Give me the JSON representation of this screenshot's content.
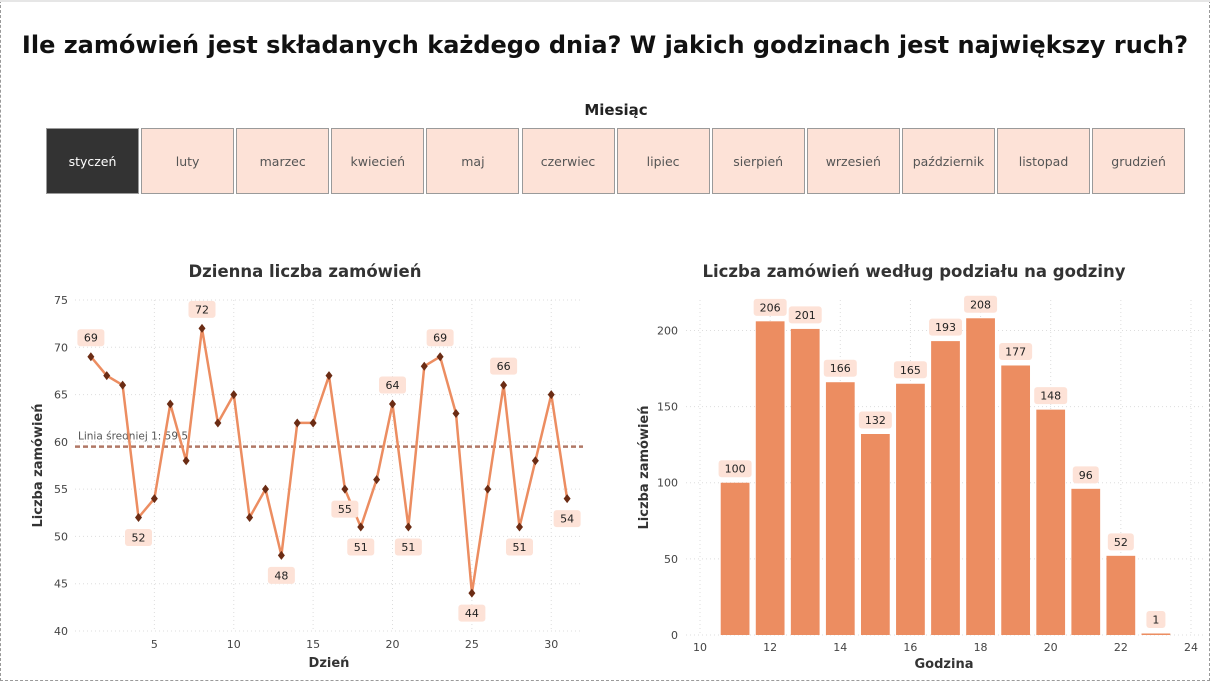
{
  "page": {
    "title": "Ile zamówień jest składanych każdego dnia? W jakich godzinach jest największy ruch?"
  },
  "slicer": {
    "label": "Miesiąc",
    "selected": "styczeń",
    "months": [
      "styczeń",
      "luty",
      "marzec",
      "kwiecień",
      "maj",
      "czerwiec",
      "lipiec",
      "sierpień",
      "wrzesień",
      "październik",
      "listopad",
      "grudzień"
    ]
  },
  "colors": {
    "accent": "#ec8d61",
    "marker": "#6b2c14",
    "label_bg": "#fde2d7",
    "avg_line": "#b07866",
    "slicer_active": "#333333",
    "slicer_bg": "#fde2d7"
  },
  "chart_data": [
    {
      "type": "line",
      "title": "Dzienna liczba zamówień",
      "xlabel": "Dzień",
      "ylabel": "Liczba zamówień",
      "x": [
        1,
        2,
        3,
        4,
        5,
        6,
        7,
        8,
        9,
        10,
        11,
        12,
        13,
        14,
        15,
        16,
        17,
        18,
        19,
        20,
        21,
        22,
        23,
        24,
        25,
        26,
        27,
        28,
        29,
        30,
        31
      ],
      "values": [
        69,
        67,
        66,
        52,
        54,
        64,
        58,
        72,
        62,
        65,
        52,
        55,
        48,
        62,
        62,
        67,
        55,
        51,
        56,
        64,
        51,
        68,
        69,
        63,
        44,
        55,
        66,
        51,
        58,
        65,
        54
      ],
      "labeled_days": [
        1,
        4,
        8,
        13,
        17,
        18,
        20,
        21,
        23,
        25,
        27,
        28,
        31
      ],
      "xticks": [
        5,
        10,
        15,
        20,
        25,
        30
      ],
      "yticks": [
        40,
        45,
        50,
        55,
        60,
        65,
        70,
        75
      ],
      "xlim": [
        0,
        32
      ],
      "ylim": [
        40,
        75
      ],
      "average": {
        "label": "Linia średniej 1: 59,5",
        "value": 59.5
      },
      "grid": true
    },
    {
      "type": "bar",
      "title": "Liczba zamówień według podziału na godziny",
      "xlabel": "Godzina",
      "ylabel": "Liczba zamówień",
      "x": [
        11,
        12,
        13,
        14,
        15,
        16,
        17,
        18,
        19,
        20,
        21,
        22,
        23
      ],
      "values": [
        100,
        206,
        201,
        166,
        132,
        165,
        193,
        208,
        177,
        148,
        96,
        52,
        1
      ],
      "xticks": [
        10,
        12,
        14,
        16,
        18,
        20,
        22,
        24
      ],
      "yticks": [
        0,
        50,
        100,
        150,
        200
      ],
      "xlim": [
        9.6,
        24.4
      ],
      "ylim": [
        0,
        220
      ],
      "grid": true
    }
  ]
}
